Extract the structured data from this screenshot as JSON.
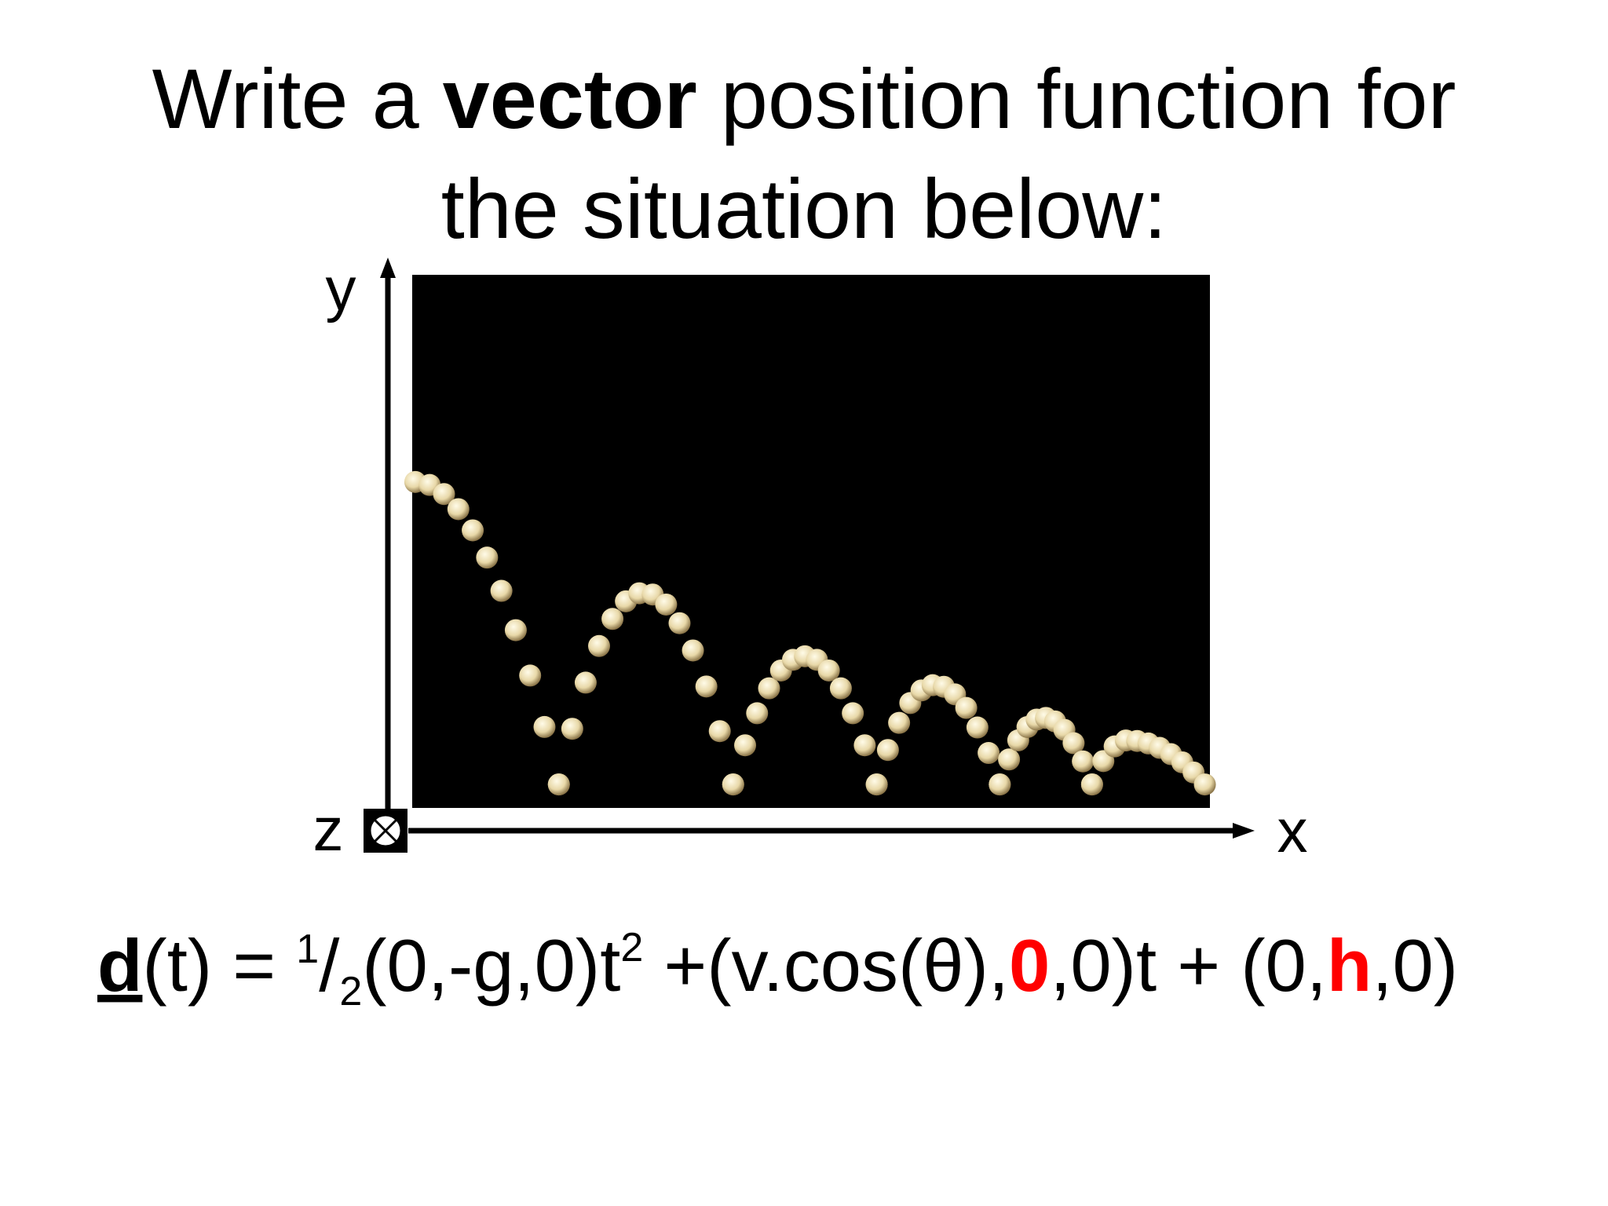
{
  "title": {
    "before": "Write a ",
    "bold": "vector",
    "after": " position function for",
    "line2": "the situation below:"
  },
  "axes": {
    "y": "y",
    "x": "x",
    "z": "z"
  },
  "formula": {
    "d": "d",
    "part1": "(t) = ",
    "num": "1",
    "slash": "/",
    "den": "2",
    "part2": "(0,-g,0)t",
    "sup": "2",
    "part3": " +(v.cos(θ),",
    "red1": "0",
    "part4": ",0)t + (0,",
    "red2": "h",
    "part5": ",0)"
  }
}
